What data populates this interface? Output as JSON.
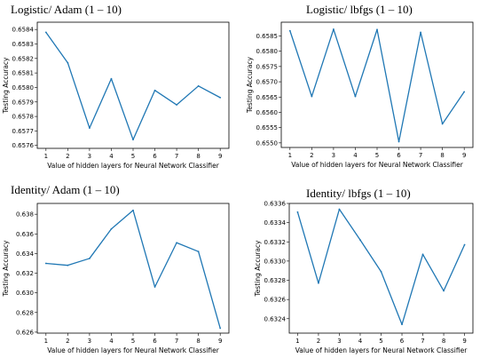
{
  "line_color": "#1f77b4",
  "panels": [
    {
      "title": "Logistic/ Adam (1 – 10)"
    },
    {
      "title": "Logistic/ lbfgs (1 – 10)"
    },
    {
      "title": "Identity/ Adam (1 – 10)"
    },
    {
      "title": "Identity/ lbfgs (1 – 10)"
    }
  ],
  "chart_data": [
    {
      "type": "line",
      "title": "Logistic/ Adam (1 – 10)",
      "xlabel": "Value of hidden layers for Neural Network Classifier",
      "ylabel": "Testing Accuracy",
      "x": [
        1,
        2,
        3,
        4,
        5,
        6,
        7,
        8,
        9
      ],
      "values": [
        0.65838,
        0.65817,
        0.65772,
        0.65806,
        0.65764,
        0.65798,
        0.65788,
        0.65801,
        0.65793
      ],
      "xticks": [
        "1",
        "2",
        "3",
        "4",
        "5",
        "6",
        "7",
        "8",
        "9"
      ],
      "yticks": [
        "0.6576",
        "0.6577",
        "0.6578",
        "0.6579",
        "0.6580",
        "0.6581",
        "0.6582",
        "0.6583",
        "0.6584"
      ],
      "ylim": [
        0.65758,
        0.65845
      ],
      "grid": false
    },
    {
      "type": "line",
      "title": "Logistic/ lbfgs (1 – 10)",
      "xlabel": "Value of hidden layers for Neural Network Classifier",
      "ylabel": "Testing Accuracy",
      "x": [
        1,
        2,
        3,
        4,
        5,
        6,
        7,
        8,
        9
      ],
      "values": [
        0.65867,
        0.65652,
        0.65872,
        0.65652,
        0.65871,
        0.65504,
        0.65862,
        0.65562,
        0.65667
      ],
      "xticks": [
        "1",
        "2",
        "3",
        "4",
        "5",
        "6",
        "7",
        "8",
        "9"
      ],
      "yticks": [
        "0.6550",
        "0.6555",
        "0.6560",
        "0.6565",
        "0.6570",
        "0.6575",
        "0.6580",
        "0.6585"
      ],
      "ylim": [
        0.65485,
        0.65895
      ],
      "grid": false
    },
    {
      "type": "line",
      "title": "Identity/ Adam (1 – 10)",
      "xlabel": "Value of hidden layers for Neural Network Classifier",
      "ylabel": "Testing Accuracy",
      "x": [
        1,
        2,
        3,
        4,
        5,
        6,
        7,
        8,
        9
      ],
      "values": [
        0.633,
        0.6328,
        0.6335,
        0.6365,
        0.6384,
        0.6306,
        0.6351,
        0.6342,
        0.6264
      ],
      "xticks": [
        "1",
        "2",
        "3",
        "4",
        "5",
        "6",
        "7",
        "8",
        "9"
      ],
      "yticks": [
        "0.626",
        "0.628",
        "0.630",
        "0.632",
        "0.634",
        "0.636",
        "0.638"
      ],
      "ylim": [
        0.6259,
        0.6391
      ],
      "grid": false
    },
    {
      "type": "line",
      "title": "Identity/ lbfgs (1 – 10)",
      "xlabel": "Value of hidden layers for Neural Network Classifier",
      "ylabel": "Testing Accuracy",
      "x": [
        1,
        2,
        3,
        4,
        5,
        6,
        7,
        8,
        9
      ],
      "values": [
        0.63351,
        0.63277,
        0.63354,
        0.63322,
        0.63289,
        0.63234,
        0.63307,
        0.63269,
        0.63317
      ],
      "xticks": [
        "1",
        "2",
        "3",
        "4",
        "5",
        "6",
        "7",
        "8",
        "9"
      ],
      "yticks": [
        "0.6324",
        "0.6326",
        "0.6328",
        "0.6330",
        "0.6332",
        "0.6334",
        "0.6336"
      ],
      "ylim": [
        0.63225,
        0.6336
      ],
      "grid": false
    }
  ]
}
